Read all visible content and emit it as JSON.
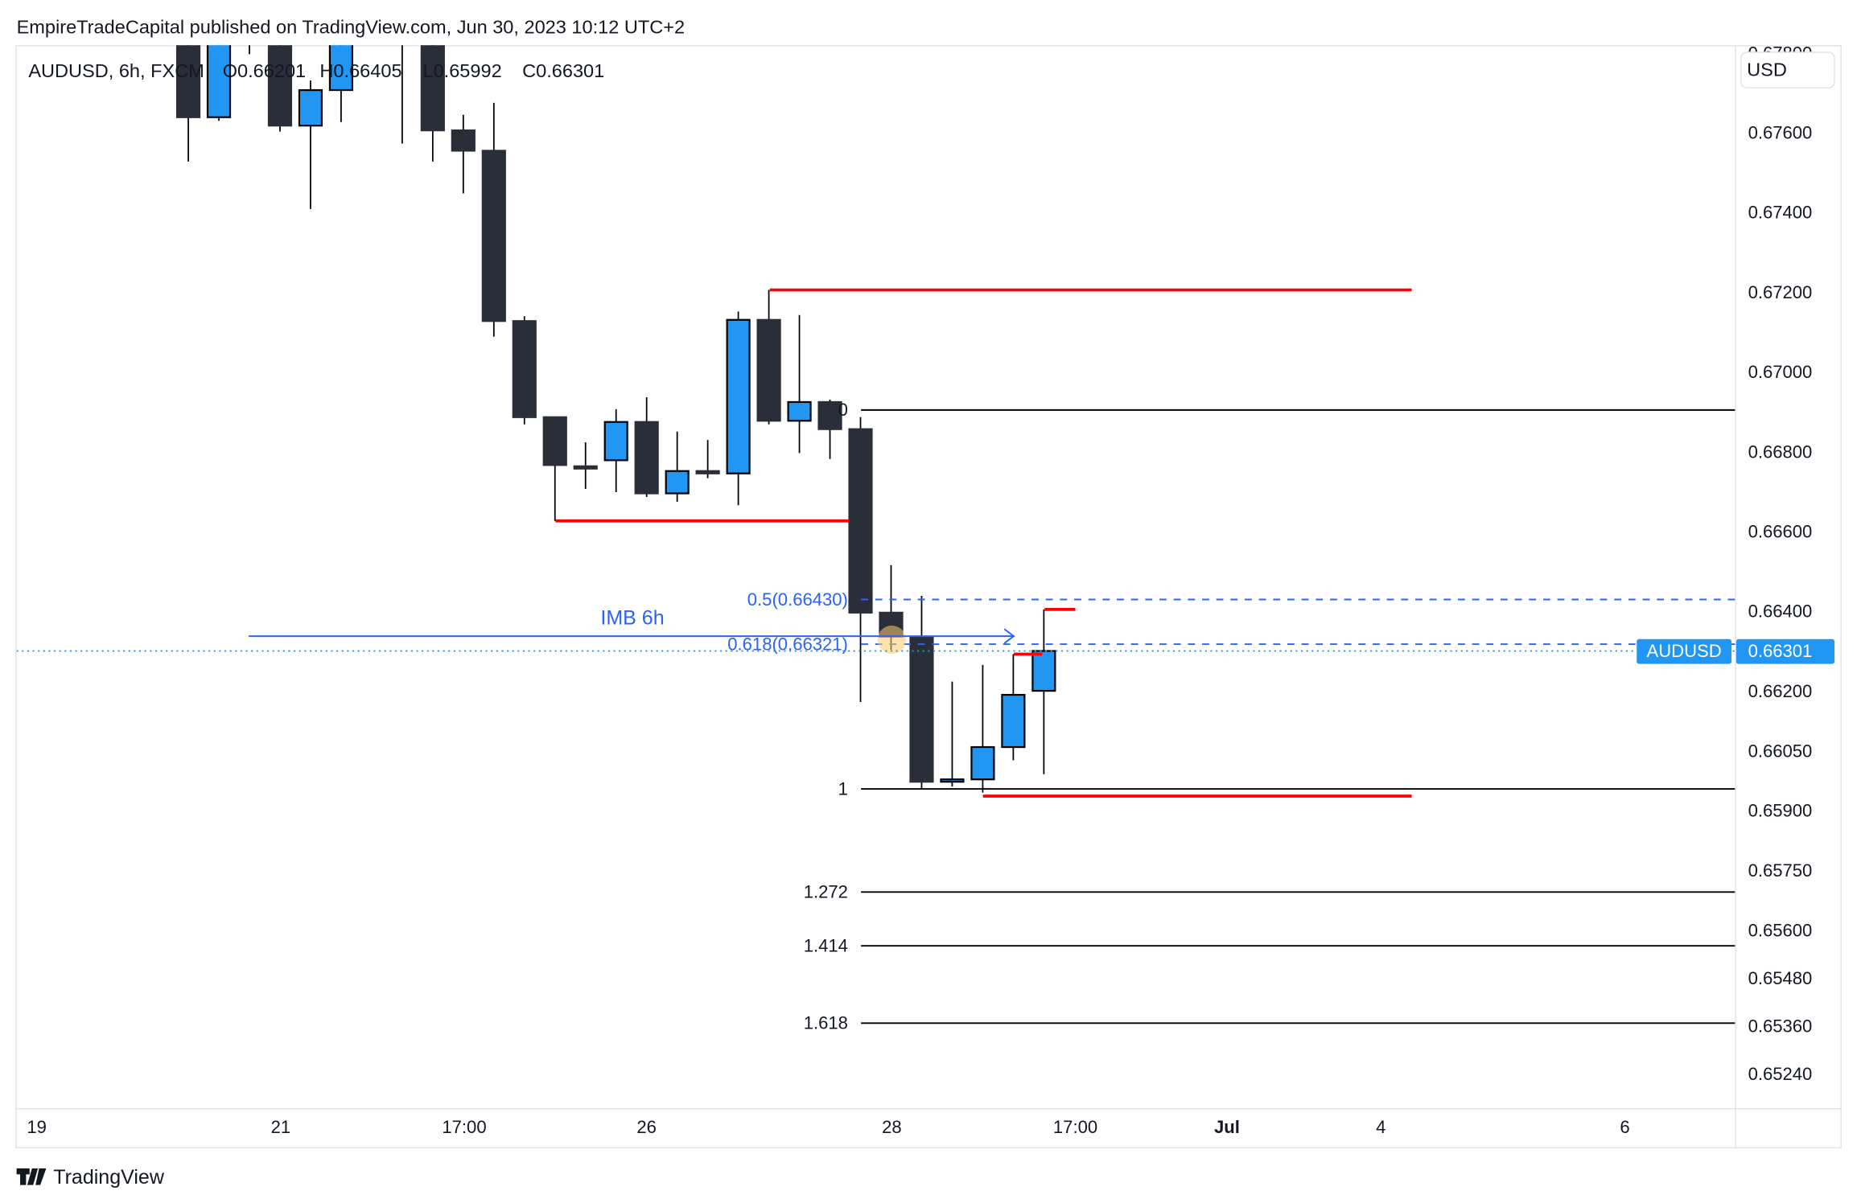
{
  "header": {
    "published": "EmpireTradeCapital published on TradingView.com, Jun 30, 2023 10:12 UTC+2"
  },
  "legend": {
    "symbol": "AUDUSD, 6h, FXCM",
    "open": "O0.66201",
    "high": "H0.66405",
    "low": "L0.65992",
    "close": "C0.66301"
  },
  "price_axis": {
    "currency": "USD",
    "ticks": [
      "0.67800",
      "0.67600",
      "0.67400",
      "0.67200",
      "0.67000",
      "0.66800",
      "0.66600",
      "0.66400",
      "0.66200",
      "0.66050",
      "0.65900",
      "0.65750",
      "0.65600",
      "0.65480",
      "0.65360",
      "0.65240"
    ],
    "last_symbol": "AUDUSD",
    "last_price": "0.66301"
  },
  "time_axis": {
    "ticks": [
      "19",
      "21",
      "17:00",
      "26",
      "28",
      "17:00",
      "Jul",
      "4",
      "6"
    ]
  },
  "annotations": {
    "imb_label": "IMB 6h",
    "fib_0": "0",
    "fib_05": "0.5(0.66430)",
    "fib_0618": "0.618(0.66321)",
    "fib_1": "1",
    "fib_1272": "1.272",
    "fib_1414": "1.414",
    "fib_1618": "1.618"
  },
  "footer": {
    "brand": "TradingView"
  },
  "colors": {
    "bull": "#2196f3",
    "bear": "#2a2e39",
    "level_red": "#ff0000",
    "fib_blue": "#2962ff",
    "price_line": "#2196f3"
  },
  "chart_data": {
    "type": "candlestick",
    "symbol": "AUDUSD",
    "timeframe": "6h",
    "ylim": [
      0.6518,
      0.6795
    ],
    "candles": [
      {
        "o": 0.679,
        "h": 0.6795,
        "l": 0.67528,
        "c": 0.67639
      },
      {
        "o": 0.67639,
        "h": 0.6795,
        "l": 0.6763,
        "c": 0.679
      },
      {
        "o": 0.6792,
        "h": 0.6795,
        "l": 0.67797,
        "c": 0.6791
      },
      {
        "o": 0.679,
        "h": 0.6795,
        "l": 0.67603,
        "c": 0.67618
      },
      {
        "o": 0.67618,
        "h": 0.67731,
        "l": 0.67409,
        "c": 0.67707
      },
      {
        "o": 0.67707,
        "h": 0.6795,
        "l": 0.67627,
        "c": 0.679
      },
      null,
      {
        "o": 0.6793,
        "h": 0.6795,
        "l": 0.67573,
        "c": 0.6792
      },
      {
        "o": 0.679,
        "h": 0.6795,
        "l": 0.67528,
        "c": 0.67606
      },
      {
        "o": 0.67606,
        "h": 0.67645,
        "l": 0.67448,
        "c": 0.67555
      },
      {
        "o": 0.67555,
        "h": 0.67675,
        "l": 0.67089,
        "c": 0.67128
      },
      {
        "o": 0.67128,
        "h": 0.6714,
        "l": 0.66869,
        "c": 0.66887
      },
      {
        "o": 0.66887,
        "h": 0.66887,
        "l": 0.66627,
        "c": 0.66767
      },
      {
        "o": 0.66764,
        "h": 0.66824,
        "l": 0.66707,
        "c": 0.66758
      },
      {
        "o": 0.66779,
        "h": 0.66907,
        "l": 0.66699,
        "c": 0.66875
      },
      {
        "o": 0.66875,
        "h": 0.66937,
        "l": 0.66687,
        "c": 0.66696
      },
      {
        "o": 0.66696,
        "h": 0.66851,
        "l": 0.66675,
        "c": 0.66752
      },
      {
        "o": 0.66752,
        "h": 0.6683,
        "l": 0.66734,
        "c": 0.66746
      },
      {
        "o": 0.66746,
        "h": 0.67152,
        "l": 0.66666,
        "c": 0.67131
      },
      {
        "o": 0.67131,
        "h": 0.67206,
        "l": 0.66869,
        "c": 0.66878
      },
      {
        "o": 0.66878,
        "h": 0.67143,
        "l": 0.66797,
        "c": 0.66925
      },
      {
        "o": 0.66925,
        "h": 0.66931,
        "l": 0.66782,
        "c": 0.66857
      },
      {
        "o": 0.66857,
        "h": 0.66887,
        "l": 0.66173,
        "c": 0.66397
      },
      {
        "o": 0.66397,
        "h": 0.66516,
        "l": 0.66304,
        "c": 0.66337
      },
      {
        "o": 0.66334,
        "h": 0.66439,
        "l": 0.65955,
        "c": 0.65973
      },
      {
        "o": 0.65973,
        "h": 0.66224,
        "l": 0.65961,
        "c": 0.65979
      },
      {
        "o": 0.65979,
        "h": 0.66266,
        "l": 0.65946,
        "c": 0.6606
      },
      {
        "o": 0.6606,
        "h": 0.66293,
        "l": 0.66027,
        "c": 0.66191
      },
      {
        "o": 0.66201,
        "h": 0.66405,
        "l": 0.65992,
        "c": 0.66301
      }
    ],
    "levels": {
      "red_high": 0.67206,
      "red_mid": 0.66627,
      "red_low": 0.65946,
      "fib_0": 0.66905,
      "fib_1": 0.65955,
      "imb": 0.66338,
      "last": 0.66301
    }
  }
}
